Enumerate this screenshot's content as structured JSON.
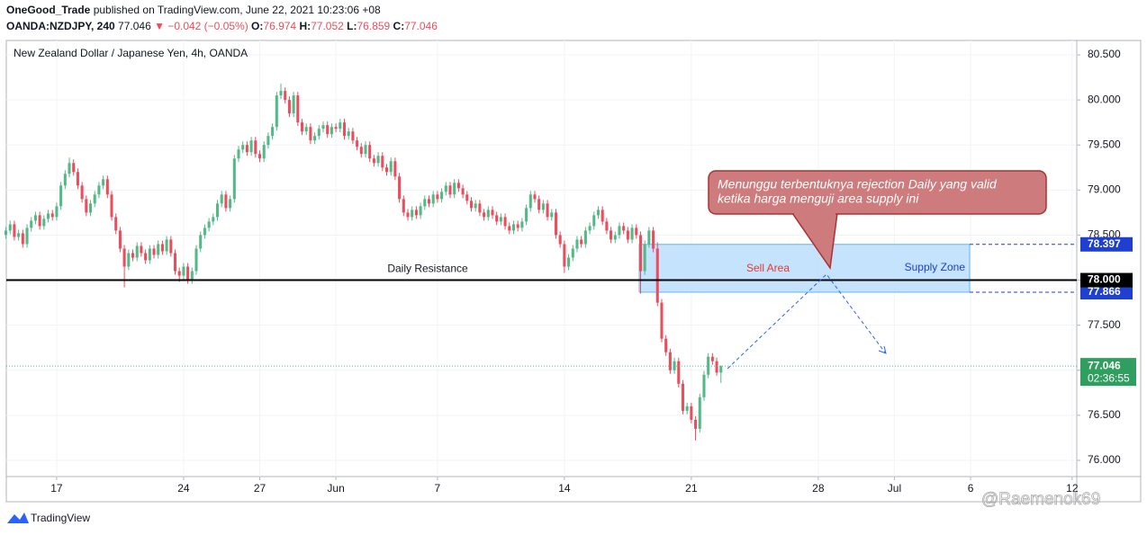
{
  "header": {
    "author": "OneGood_Trade",
    "published": "published on TradingView.com, June 22, 2021 10:23:06 +08",
    "symbol": "OANDA:NZDJPY, 240",
    "change": "▼ −0.042 (−0.05%)",
    "o_label": "O:",
    "h_label": "H:",
    "l_label": "L:",
    "c_label": "C:"
  },
  "chart_data": {
    "type": "candlestick",
    "title": "New Zealand Dollar / Japanese Yen, 4h, OANDA",
    "up_color": "#53b987",
    "down_color": "#eb4d5c",
    "grid": true,
    "open": [
      78.5,
      78.55,
      78.62,
      78.48,
      78.52,
      78.4,
      78.58,
      78.66,
      78.72,
      78.6,
      78.68,
      78.74,
      78.7,
      78.82,
      79.05,
      79.18,
      79.3,
      79.2,
      79.05,
      78.9,
      78.75,
      78.85,
      78.95,
      79.05,
      79.12,
      78.95,
      78.7,
      78.55,
      78.35,
      78.15,
      78.3,
      78.25,
      78.38,
      78.3,
      78.22,
      78.35,
      78.28,
      78.4,
      78.32,
      78.45,
      78.3,
      78.1,
      78.05,
      78.15,
      78.0,
      78.1,
      78.35,
      78.5,
      78.58,
      78.65,
      78.7,
      78.85,
      78.95,
      78.8,
      78.9,
      79.35,
      79.45,
      79.5,
      79.42,
      79.55,
      79.4,
      79.35,
      79.5,
      79.6,
      79.7,
      80.05,
      80.1,
      80.0,
      79.85,
      80.05,
      79.75,
      79.65,
      79.7,
      79.55,
      79.6,
      79.68,
      79.72,
      79.62,
      79.7,
      79.68,
      79.75,
      79.6,
      79.65,
      79.55,
      79.48,
      79.4,
      79.5,
      79.35,
      79.3,
      79.38,
      79.25,
      79.2,
      79.32,
      79.15,
      78.9,
      78.75,
      78.7,
      78.78,
      78.72,
      78.82,
      78.9,
      78.85,
      78.95,
      78.9,
      78.98,
      79.05,
      78.95,
      79.08,
      79.02,
      78.95,
      78.88,
      78.8,
      78.85,
      78.75,
      78.7,
      78.78,
      78.72,
      78.65,
      78.7,
      78.6,
      78.55,
      78.62,
      78.58,
      78.65,
      78.8,
      78.95,
      78.9,
      78.78,
      78.85,
      78.7,
      78.75,
      78.5,
      78.4,
      78.15,
      78.25,
      78.35,
      78.45,
      78.4,
      78.55,
      78.6,
      78.72,
      78.78,
      78.65,
      78.55,
      78.45,
      78.5,
      78.6,
      78.55,
      78.45,
      78.58,
      78.5,
      78.1,
      78.4,
      78.55,
      78.35,
      77.75,
      77.35,
      77.2,
      77.0,
      77.1,
      76.85,
      76.55,
      76.6,
      76.45,
      76.35,
      76.7,
      76.95,
      77.15,
      77.1,
      76.974
    ],
    "high": [
      78.59,
      78.66,
      78.66,
      78.56,
      78.56,
      78.62,
      78.7,
      78.76,
      78.76,
      78.72,
      78.78,
      78.78,
      78.86,
      79.09,
      79.22,
      79.36,
      79.34,
      79.24,
      79.09,
      78.94,
      78.89,
      78.99,
      79.09,
      79.16,
      79.16,
      78.99,
      78.74,
      78.59,
      78.39,
      78.34,
      78.34,
      78.42,
      78.42,
      78.34,
      78.39,
      78.39,
      78.44,
      78.44,
      78.49,
      78.49,
      78.34,
      78.14,
      78.19,
      78.19,
      78.14,
      78.39,
      78.54,
      78.62,
      78.69,
      78.74,
      78.89,
      78.99,
      78.99,
      78.94,
      79.39,
      79.49,
      79.54,
      79.54,
      79.59,
      79.59,
      79.44,
      79.54,
      79.64,
      79.74,
      80.09,
      80.18,
      80.14,
      80.04,
      80.09,
      80.09,
      79.79,
      79.74,
      79.74,
      79.64,
      79.72,
      79.76,
      79.76,
      79.74,
      79.74,
      79.79,
      79.79,
      79.69,
      79.69,
      79.59,
      79.52,
      79.54,
      79.54,
      79.39,
      79.42,
      79.42,
      79.29,
      79.36,
      79.36,
      79.19,
      78.94,
      78.79,
      78.82,
      78.82,
      78.86,
      78.94,
      78.94,
      78.99,
      78.99,
      79.02,
      79.09,
      79.09,
      79.12,
      79.12,
      79.06,
      78.99,
      78.92,
      78.89,
      78.89,
      78.79,
      78.82,
      78.82,
      78.76,
      78.74,
      78.74,
      78.64,
      78.66,
      78.66,
      78.69,
      78.84,
      78.99,
      78.99,
      78.94,
      78.89,
      78.89,
      78.79,
      78.79,
      78.54,
      78.44,
      78.29,
      78.39,
      78.49,
      78.49,
      78.59,
      78.64,
      78.76,
      78.82,
      78.82,
      78.69,
      78.59,
      78.54,
      78.64,
      78.64,
      78.59,
      78.62,
      78.62,
      78.54,
      78.44,
      78.59,
      78.59,
      78.42,
      77.79,
      77.39,
      77.24,
      77.14,
      77.14,
      76.89,
      76.64,
      76.64,
      76.49,
      76.74,
      76.99,
      77.19,
      77.19,
      77.14,
      77.052
    ],
    "low": [
      78.46,
      78.51,
      78.44,
      78.44,
      78.36,
      78.36,
      78.54,
      78.62,
      78.56,
      78.56,
      78.64,
      78.66,
      78.66,
      78.78,
      79.01,
      79.14,
      79.16,
      79.01,
      78.86,
      78.71,
      78.71,
      78.81,
      78.91,
      79.01,
      78.91,
      78.66,
      78.51,
      78.31,
      77.92,
      78.11,
      78.21,
      78.21,
      78.26,
      78.18,
      78.18,
      78.24,
      78.24,
      78.28,
      78.28,
      78.26,
      78.06,
      77.98,
      78.01,
      77.96,
      77.96,
      78.06,
      78.31,
      78.46,
      78.54,
      78.61,
      78.66,
      78.81,
      78.76,
      78.76,
      78.86,
      79.31,
      79.41,
      79.38,
      79.38,
      79.36,
      79.31,
      79.31,
      79.46,
      79.56,
      79.66,
      80.01,
      79.96,
      79.81,
      79.81,
      79.71,
      79.61,
      79.61,
      79.51,
      79.51,
      79.56,
      79.64,
      79.58,
      79.58,
      79.64,
      79.64,
      79.56,
      79.56,
      79.51,
      79.44,
      79.36,
      79.36,
      79.31,
      79.26,
      79.26,
      79.21,
      79.16,
      79.16,
      79.11,
      78.86,
      78.71,
      78.66,
      78.66,
      78.68,
      78.68,
      78.78,
      78.81,
      78.81,
      78.86,
      78.86,
      78.94,
      78.91,
      78.91,
      78.98,
      78.91,
      78.84,
      78.76,
      78.76,
      78.71,
      78.66,
      78.66,
      78.68,
      78.61,
      78.61,
      78.56,
      78.51,
      78.51,
      78.54,
      78.54,
      78.61,
      78.76,
      78.86,
      78.74,
      78.74,
      78.66,
      78.66,
      78.46,
      78.36,
      78.08,
      78.11,
      78.21,
      78.31,
      78.36,
      78.36,
      78.51,
      78.56,
      78.68,
      78.61,
      78.51,
      78.41,
      78.41,
      78.46,
      78.51,
      78.41,
      78.41,
      78.46,
      77.85,
      78.06,
      78.36,
      78.31,
      77.71,
      77.31,
      77.16,
      76.96,
      76.96,
      76.81,
      76.51,
      76.51,
      76.41,
      76.22,
      76.31,
      76.66,
      76.91,
      77.06,
      76.94,
      76.859
    ],
    "close": [
      78.55,
      78.62,
      78.48,
      78.52,
      78.4,
      78.58,
      78.66,
      78.72,
      78.6,
      78.68,
      78.74,
      78.7,
      78.82,
      79.05,
      79.18,
      79.3,
      79.2,
      79.05,
      78.9,
      78.75,
      78.85,
      78.95,
      79.05,
      79.12,
      78.95,
      78.7,
      78.55,
      78.35,
      78.15,
      78.3,
      78.25,
      78.38,
      78.3,
      78.22,
      78.35,
      78.28,
      78.4,
      78.32,
      78.45,
      78.3,
      78.1,
      78.05,
      78.15,
      78.0,
      78.1,
      78.35,
      78.5,
      78.58,
      78.65,
      78.7,
      78.85,
      78.95,
      78.8,
      78.9,
      79.35,
      79.45,
      79.5,
      79.42,
      79.55,
      79.4,
      79.35,
      79.5,
      79.6,
      79.7,
      80.05,
      80.1,
      80.0,
      79.85,
      80.05,
      79.75,
      79.65,
      79.7,
      79.55,
      79.6,
      79.68,
      79.72,
      79.62,
      79.7,
      79.68,
      79.75,
      79.6,
      79.65,
      79.55,
      79.48,
      79.4,
      79.5,
      79.35,
      79.3,
      79.38,
      79.25,
      79.2,
      79.32,
      79.15,
      78.9,
      78.75,
      78.7,
      78.78,
      78.72,
      78.82,
      78.9,
      78.85,
      78.95,
      78.9,
      78.98,
      79.05,
      78.95,
      79.08,
      79.02,
      78.95,
      78.88,
      78.8,
      78.85,
      78.75,
      78.7,
      78.78,
      78.72,
      78.65,
      78.7,
      78.6,
      78.55,
      78.62,
      78.58,
      78.65,
      78.8,
      78.95,
      78.9,
      78.78,
      78.85,
      78.7,
      78.75,
      78.5,
      78.4,
      78.15,
      78.25,
      78.35,
      78.45,
      78.4,
      78.55,
      78.6,
      78.72,
      78.78,
      78.65,
      78.55,
      78.45,
      78.5,
      78.6,
      78.55,
      78.45,
      78.58,
      78.5,
      78.1,
      78.4,
      78.55,
      78.35,
      77.75,
      77.35,
      77.2,
      77.0,
      77.1,
      76.85,
      76.55,
      76.6,
      76.45,
      76.35,
      76.7,
      76.95,
      77.15,
      77.1,
      76.974,
      77.046
    ],
    "xlim": [
      0.1,
      253.1
    ],
    "xticks": [
      {
        "value": 12,
        "label": "17"
      },
      {
        "value": 42,
        "label": "24"
      },
      {
        "value": 60,
        "label": "27"
      },
      {
        "value": 78,
        "label": "Jun"
      },
      {
        "value": 102,
        "label": "7"
      },
      {
        "value": 132,
        "label": "14"
      },
      {
        "value": 162,
        "label": "21"
      },
      {
        "value": 192,
        "label": "28"
      },
      {
        "value": 210,
        "label": "Jul"
      },
      {
        "value": 228,
        "label": "6"
      },
      {
        "value": 252,
        "label": "12"
      }
    ],
    "ylim": [
      75.82,
      80.66
    ],
    "yticks": [
      {
        "value": 76,
        "label": "76.000"
      },
      {
        "value": 76.5,
        "label": "76.500"
      },
      {
        "value": 77,
        "label": "77.000"
      },
      {
        "value": 77.5,
        "label": "77.500"
      },
      {
        "value": 78,
        "label": "78.000"
      },
      {
        "value": 78.5,
        "label": "78.500"
      },
      {
        "value": 79,
        "label": "79.000"
      },
      {
        "value": 79.5,
        "label": "79.500"
      },
      {
        "value": 80,
        "label": "80.000"
      },
      {
        "value": 80.5,
        "label": "80.500"
      }
    ],
    "annotations": {
      "resistance": {
        "label": "Daily Resistance",
        "value": {
          "value": 78,
          "label": "78.000"
        }
      },
      "zone": {
        "top": 78.397,
        "bottom": 77.866,
        "label": "Supply Zone",
        "inner_label": "Sell Area"
      },
      "note": [
        "Menunggu terbentuknya rejection Daily yang valid",
        "ketika harga menguji area supply ini"
      ],
      "countdown": "02:36:55"
    }
  },
  "footer": {
    "brand": "TradingView",
    "watermark": "@Raemenok69"
  }
}
